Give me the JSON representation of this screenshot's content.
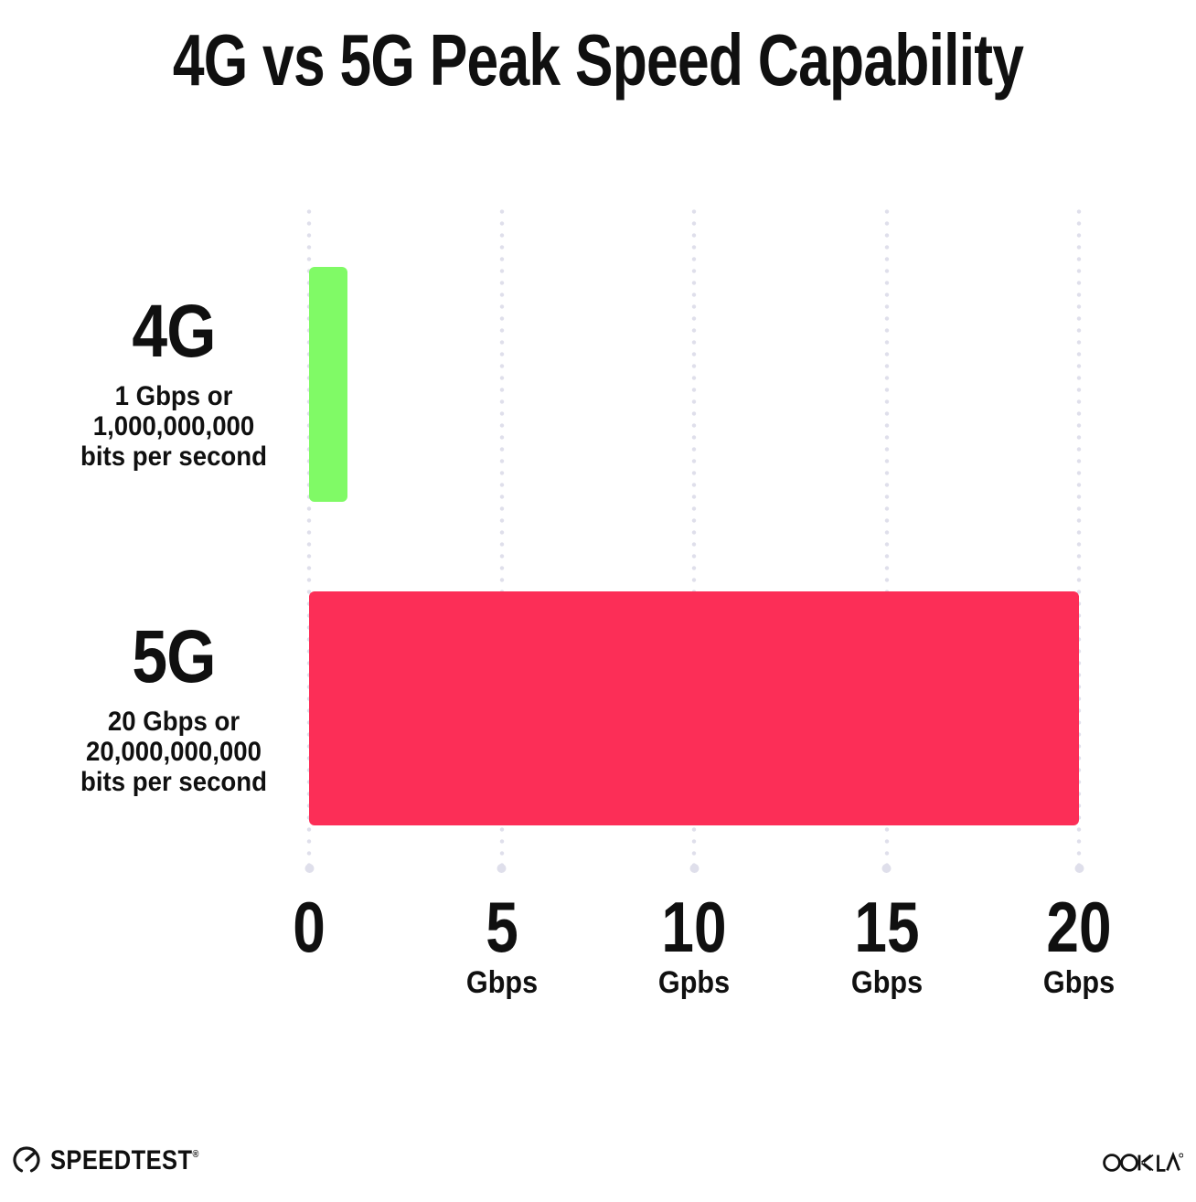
{
  "title": "4G vs 5G Peak Speed Capability",
  "chart_data": {
    "type": "bar",
    "orientation": "horizontal",
    "title": "4G vs 5G Peak Speed Capability",
    "categories": [
      "4G",
      "5G"
    ],
    "values": [
      1,
      20
    ],
    "xlabel": "Gbps",
    "ylabel": "",
    "xlim": [
      0,
      20
    ],
    "grid": "dotted-vertical-gridlines",
    "legend": "none",
    "series": [
      {
        "name": "4G",
        "value": 1,
        "color": "#80fa66",
        "description_lines": [
          "1 Gbps or",
          "1,000,000,000",
          "bits per second"
        ]
      },
      {
        "name": "5G",
        "value": 20,
        "color": "#fc2e57",
        "description_lines": [
          "20 Gbps or",
          "20,000,000,000",
          "bits per second"
        ]
      }
    ],
    "x_axis": {
      "min": 0,
      "max": 20,
      "ticks": [
        {
          "value": 0,
          "label": "0",
          "unit": ""
        },
        {
          "value": 5,
          "label": "5",
          "unit": "Gbps"
        },
        {
          "value": 10,
          "label": "10",
          "unit": "Gpbs"
        },
        {
          "value": 15,
          "label": "15",
          "unit": "Gbps"
        },
        {
          "value": 20,
          "label": "20",
          "unit": "Gbps"
        }
      ]
    }
  },
  "colors": {
    "bar_4g": "#80fa66",
    "bar_5g": "#fc2e57",
    "gridline": "#dfdfeb",
    "text": "#101010",
    "background": "#ffffff"
  },
  "footer": {
    "speedtest_text": "SPEEDTEST",
    "speedtest_trademark": "®",
    "ookla_text": "OOKLA",
    "ookla_trademark": "®"
  }
}
